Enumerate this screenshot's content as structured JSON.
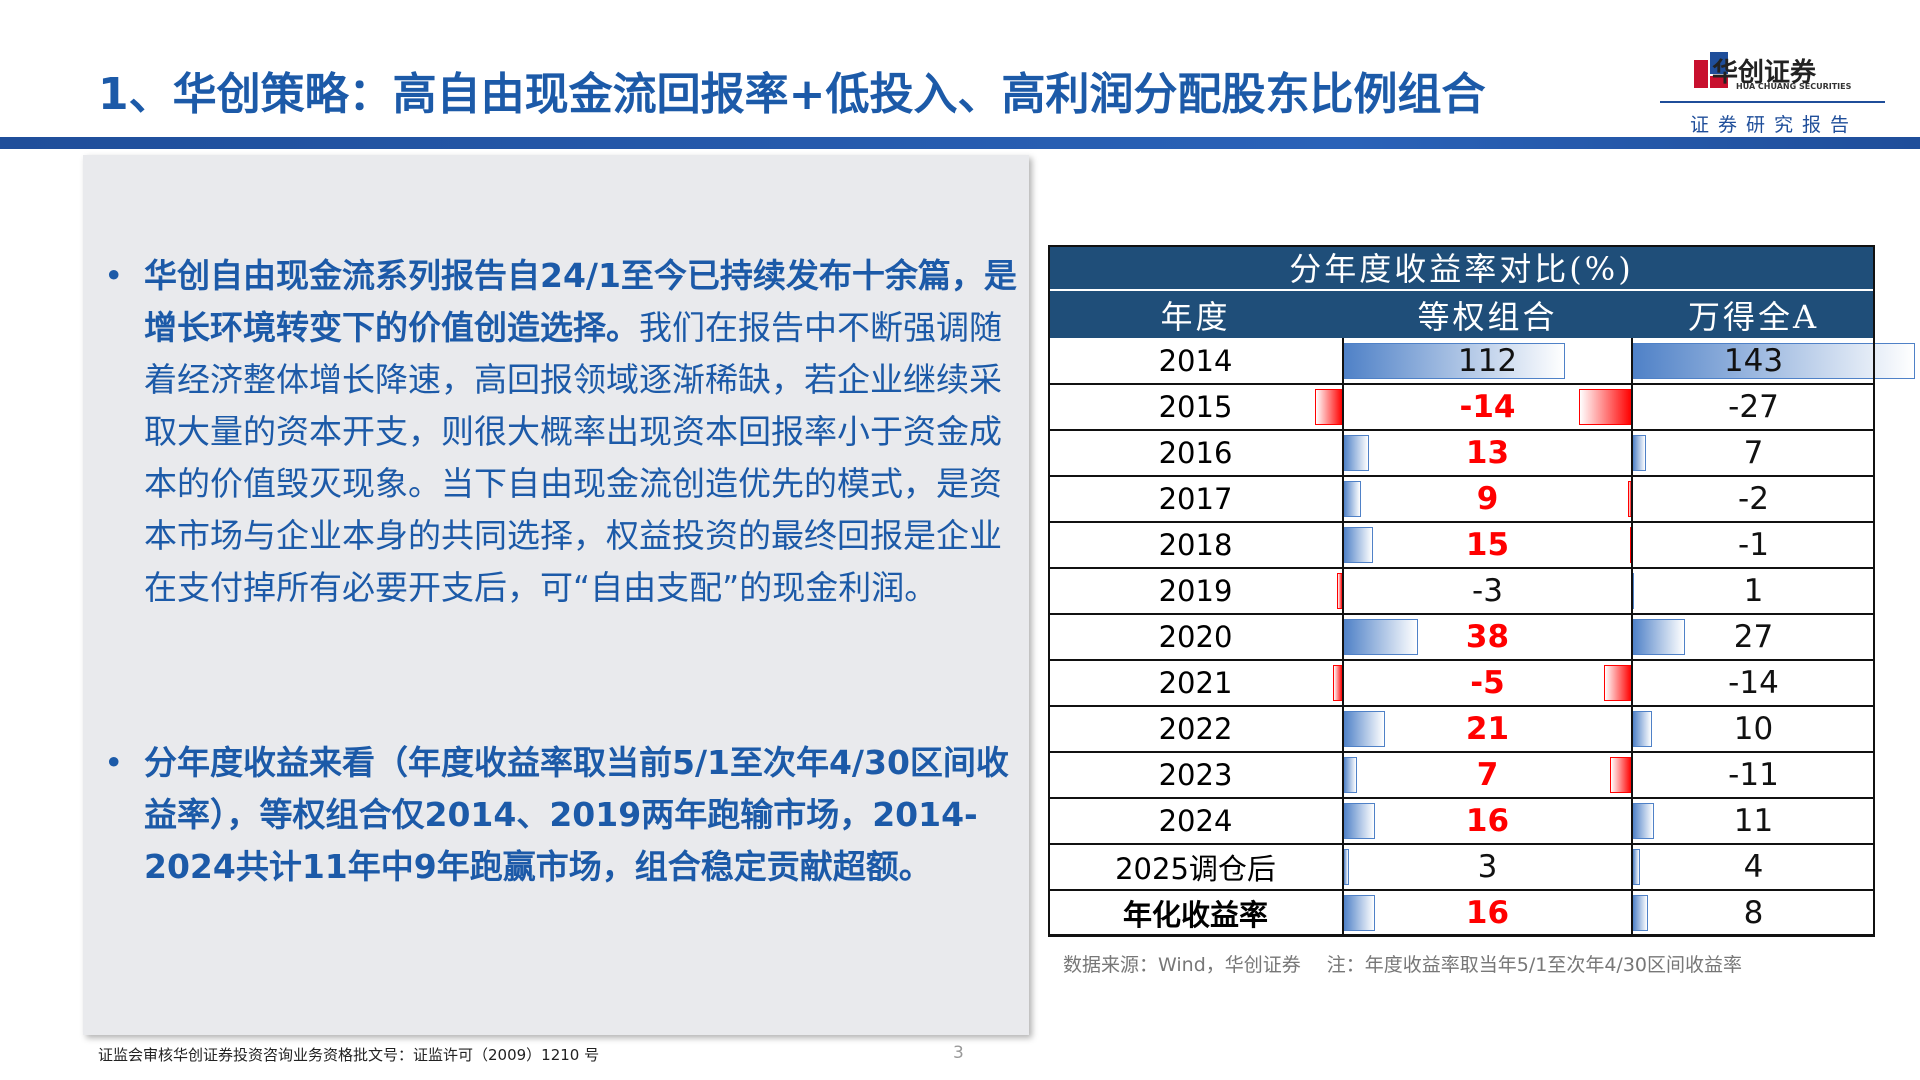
{
  "header": {
    "title": "1、华创策略：高自由现金流回报率+低投入、高利润分配股东比例组合",
    "logo_name": "华创证券",
    "logo_en": "HUA CHUANG SECURITIES",
    "tagline": "证券研究报告"
  },
  "bullets": [
    {
      "bold": "华创自由现金流系列报告自24/1至今已持续发布十余篇，是增长环境转变下的价值创造选择。",
      "normal": "我们在报告中不断强调随着经济整体增长降速，高回报领域逐渐稀缺，若企业继续采取大量的资本开支，则很大概率出现资本回报率小于资金成本的价值毁灭现象。当下自由现金流创造优先的模式，是资本市场与企业本身的共同选择，权益投资的最终回报是企业在支付掉所有必要开支后，可“自由支配”的现金利润。"
    },
    {
      "bold": "分年度收益来看（年度收益率取当前5/1至次年4/30区间收益率），等权组合仅2014、2019两年跑输市场，2014-2024共计11年中9年跑赢市场，组合稳定贡献超额。"
    }
  ],
  "table": {
    "title": "分年度收益率对比(%)",
    "columns": [
      "年度",
      "等权组合",
      "万得全A"
    ],
    "rows": [
      [
        "2014",
        112,
        143
      ],
      [
        "2015",
        -14,
        -27
      ],
      [
        "2016",
        13,
        7
      ],
      [
        "2017",
        9,
        -2
      ],
      [
        "2018",
        15,
        -1
      ],
      [
        "2019",
        -3,
        1
      ],
      [
        "2020",
        38,
        27
      ],
      [
        "2021",
        -5,
        -14
      ],
      [
        "2022",
        21,
        10
      ],
      [
        "2023",
        7,
        -11
      ],
      [
        "2024",
        16,
        11
      ],
      [
        "2025调仓后",
        3,
        4
      ],
      [
        "年化收益率",
        16,
        8
      ]
    ],
    "highlight_color": "#ff0000",
    "positive_bar_color": "#4f81c7",
    "negative_bar_color": "#ff0000"
  },
  "source": "数据来源：Wind，华创证券",
  "note": "注：年度收益率取当年5/1至次年4/30区间收益率",
  "footer": {
    "license": "证监会审核华创证券投资咨询业务资格批文号：证监许可（2009）1210 号",
    "page": "3"
  }
}
